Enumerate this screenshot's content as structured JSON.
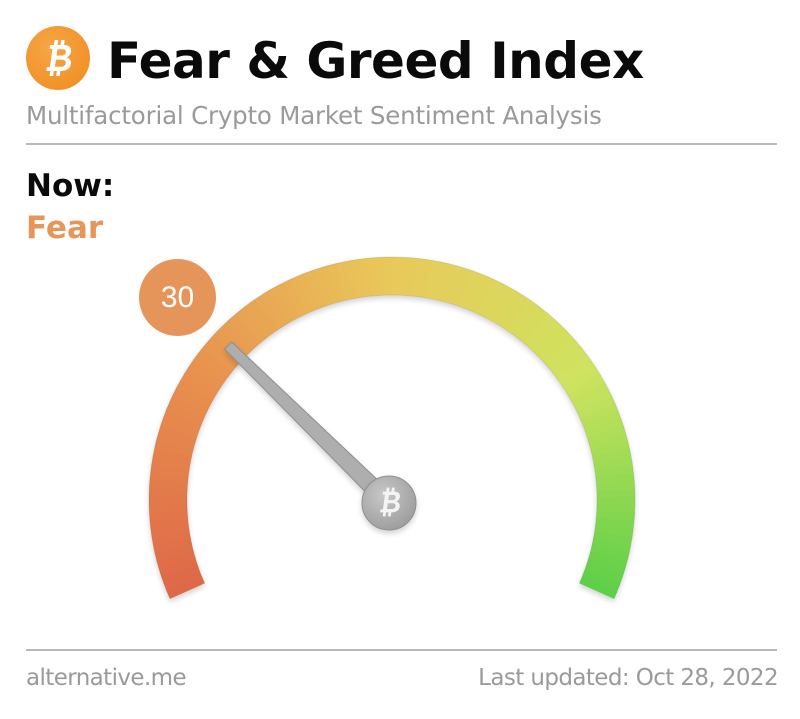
{
  "header": {
    "logo_icon": "bitcoin-icon",
    "title": "Fear & Greed Index",
    "subtitle": "Multifactorial Crypto Market Sentiment Analysis"
  },
  "current": {
    "label": "Now:",
    "classification": "Fear",
    "value": "30",
    "classification_color": "#e8955a"
  },
  "gauge": {
    "min": 0,
    "max": 100,
    "value": 30,
    "hub_icon": "bitcoin-icon",
    "gradient_colors": [
      "#de6848",
      "#e8914f",
      "#e9c95a",
      "#cfe35e",
      "#5ccf48"
    ]
  },
  "footer": {
    "source": "alternative.me",
    "last_updated": "Last updated: Oct 28, 2022"
  },
  "chart_data": {
    "type": "gauge",
    "title": "Fear & Greed Index",
    "subtitle": "Multifactorial Crypto Market Sentiment Analysis",
    "value": 30,
    "range": [
      0,
      100
    ],
    "classification": "Fear",
    "color_scale": [
      "red (extreme fear)",
      "orange",
      "yellow",
      "lime",
      "green (extreme greed)"
    ],
    "date": "Oct 28, 2022"
  }
}
